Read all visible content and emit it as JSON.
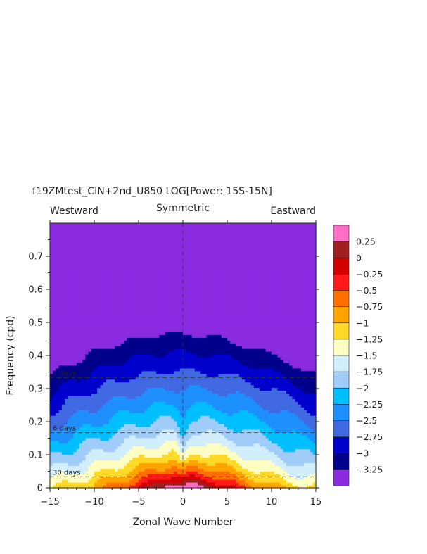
{
  "chart_data": {
    "type": "heatmap",
    "title": "f19ZMtest_CIN+2nd_U850 LOG[Power: 15S-15N]",
    "header": {
      "left": "Westward",
      "center": "Symmetric",
      "right": "Eastward"
    },
    "xlabel": "Zonal Wave Number",
    "ylabel": "Frequency (cpd)",
    "xlim": [
      -15,
      15
    ],
    "ylim": [
      0,
      0.8
    ],
    "x_ticks": [
      -15,
      -10,
      -5,
      0,
      5,
      10,
      15
    ],
    "y_ticks": [
      0,
      0.1,
      0.2,
      0.3,
      0.4,
      0.5,
      0.6,
      0.7
    ],
    "period_lines": [
      {
        "label": "3 days",
        "freq": 0.3333
      },
      {
        "label": "6 days",
        "freq": 0.1667
      },
      {
        "label": "30 days",
        "freq": 0.0333
      }
    ],
    "colorbar": {
      "labels": [
        "0.25",
        "0",
        "-0.25",
        "-0.5",
        "-0.75",
        "-1",
        "-1.25",
        "-1.5",
        "-1.75",
        "-2",
        "-2.25",
        "-2.5",
        "-2.75",
        "-3",
        "-3.25"
      ],
      "colors": [
        "#ff6ec7",
        "#a01e1e",
        "#d40000",
        "#ff1a1a",
        "#ff6f00",
        "#ffa500",
        "#ffd828",
        "#ffffc4",
        "#d2eefc",
        "#a0ccf9",
        "#00bfff",
        "#1e8fff",
        "#4169e1",
        "#0000cd",
        "#00008b",
        "#8a2be2"
      ]
    },
    "contour_levels": [
      0.25,
      0,
      -0.25,
      -0.5,
      -0.75,
      -1,
      -1.25,
      -1.5,
      -1.75,
      -2,
      -2.25,
      -2.5,
      -2.75,
      -3,
      -3.25
    ]
  }
}
